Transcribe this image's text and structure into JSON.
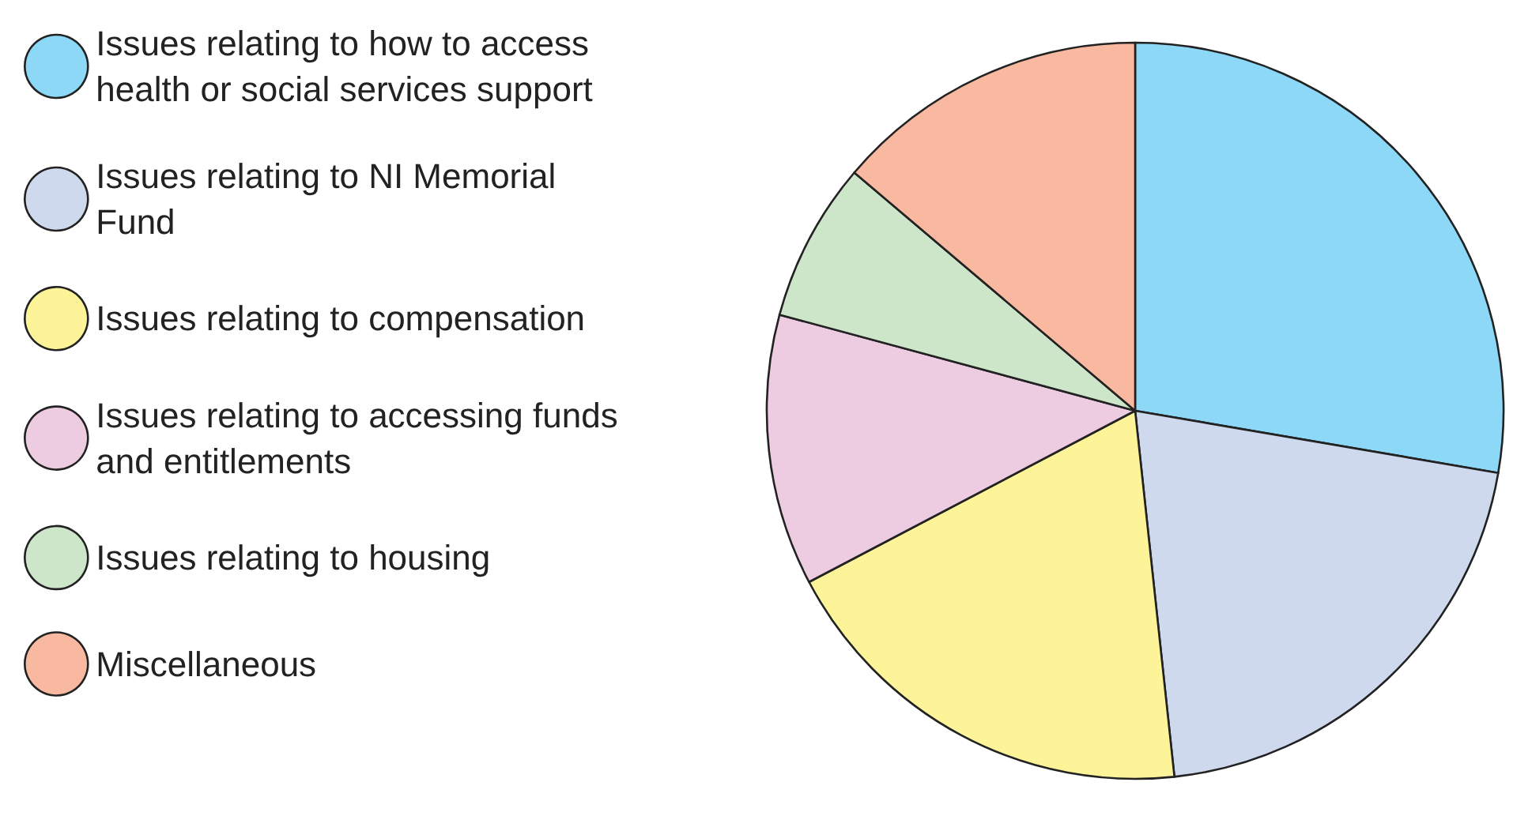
{
  "chart_data": {
    "type": "pie",
    "categories": [
      "Issues relating to how to access health or social services support",
      "Issues relating to NI Memorial Fund",
      "Issues relating to compensation",
      "Issues relating to accessing funds and entitlements",
      "Issues relating to housing",
      "Miscellaneous"
    ],
    "values": [
      27.7,
      20.6,
      19.0,
      11.9,
      7.0,
      13.8
    ],
    "colors": [
      "#8dd8f6",
      "#cfd9ee",
      "#fdf499",
      "#edcce2",
      "#cde6c9",
      "#f9b9a0"
    ],
    "legend": "left"
  }
}
